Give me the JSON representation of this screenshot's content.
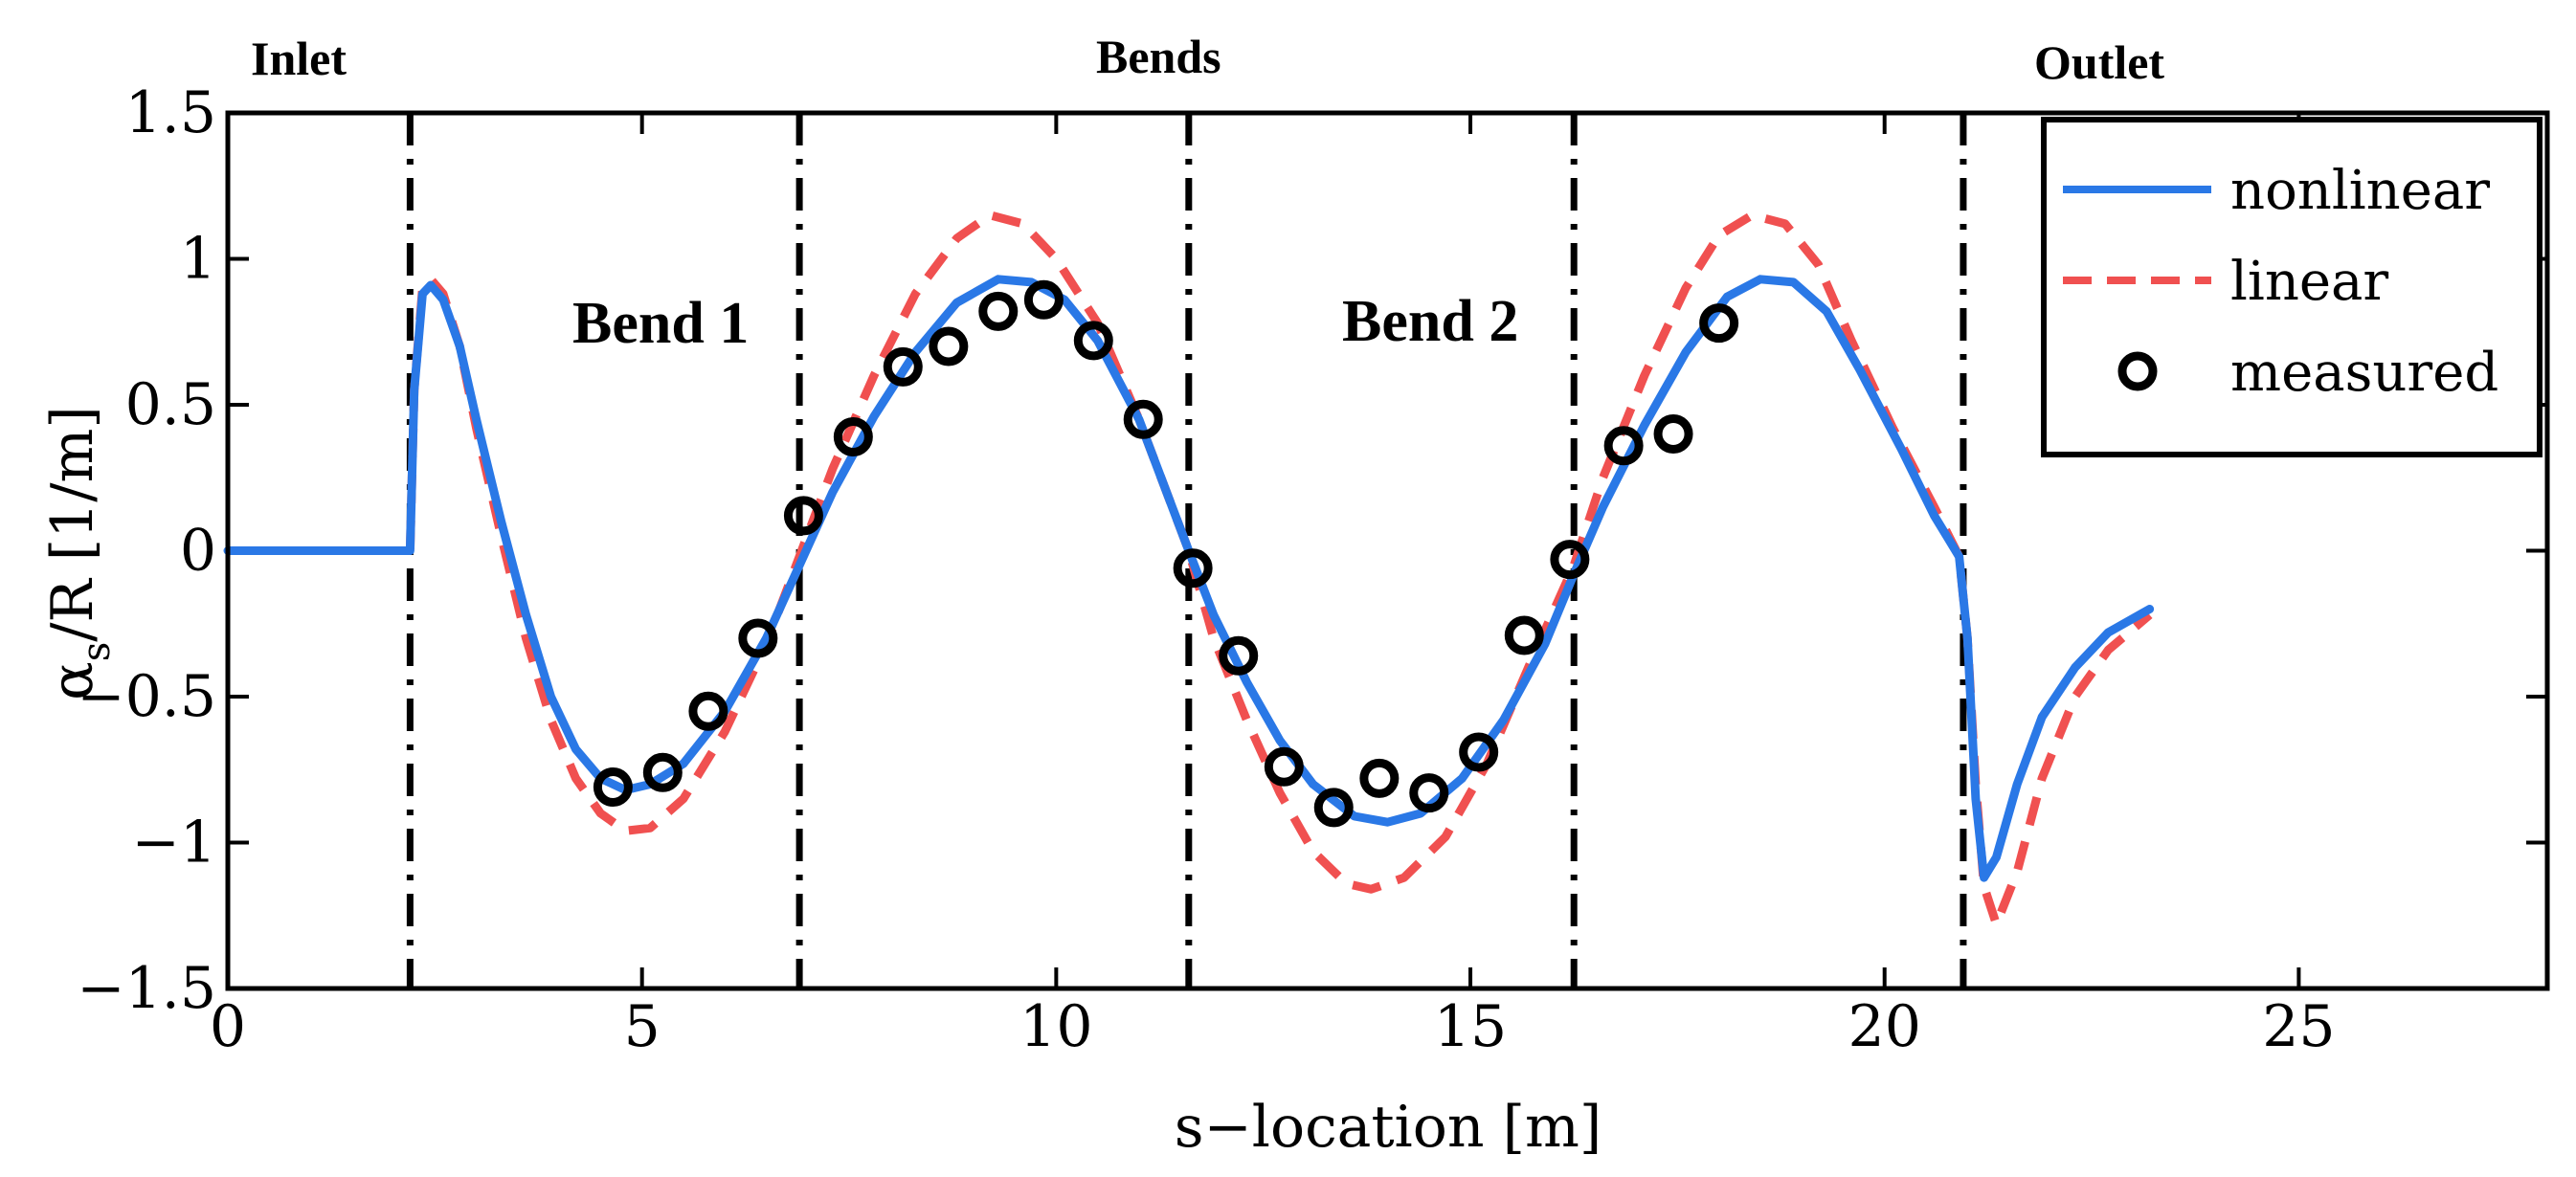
{
  "chart_data": {
    "type": "line",
    "xlabel": "s−location [m]",
    "ylabel_symbol": "α",
    "ylabel_sub": "s",
    "ylabel_rest": "/R [1/m]",
    "xlim": [
      0,
      28
    ],
    "ylim": [
      -1.5,
      1.5
    ],
    "xticks": [
      0,
      5,
      10,
      15,
      20,
      25
    ],
    "xtick_labels": [
      "0",
      "5",
      "10",
      "15",
      "20",
      "25"
    ],
    "yticks": [
      -1.5,
      -1,
      -0.5,
      0,
      0.5,
      1,
      1.5
    ],
    "ytick_labels": [
      "−1.5",
      "−1",
      "−0.5",
      "0",
      "0.5",
      "1",
      "1.5"
    ],
    "vlines": [
      2.2,
      6.9,
      11.6,
      16.25,
      20.95
    ],
    "region_labels": {
      "inlet": "Inlet",
      "bends": "Bends",
      "outlet": "Outlet"
    },
    "annotations": {
      "bend1": "Bend 1",
      "bend2": "Bend 2"
    },
    "series": [
      {
        "name": "nonlinear",
        "style": "solid",
        "color": "#2a78e6",
        "points": [
          [
            0,
            0
          ],
          [
            2.2,
            0
          ],
          [
            2.25,
            0.55
          ],
          [
            2.35,
            0.88
          ],
          [
            2.45,
            0.91
          ],
          [
            2.6,
            0.86
          ],
          [
            2.8,
            0.7
          ],
          [
            3.0,
            0.45
          ],
          [
            3.3,
            0.1
          ],
          [
            3.6,
            -0.22
          ],
          [
            3.9,
            -0.5
          ],
          [
            4.2,
            -0.68
          ],
          [
            4.5,
            -0.78
          ],
          [
            4.8,
            -0.82
          ],
          [
            5.1,
            -0.8
          ],
          [
            5.5,
            -0.73
          ],
          [
            6.0,
            -0.55
          ],
          [
            6.5,
            -0.3
          ],
          [
            6.9,
            -0.05
          ],
          [
            7.3,
            0.2
          ],
          [
            7.8,
            0.46
          ],
          [
            8.3,
            0.68
          ],
          [
            8.8,
            0.85
          ],
          [
            9.3,
            0.93
          ],
          [
            9.7,
            0.92
          ],
          [
            10.1,
            0.86
          ],
          [
            10.5,
            0.72
          ],
          [
            11.0,
            0.45
          ],
          [
            11.4,
            0.15
          ],
          [
            11.6,
            0.0
          ],
          [
            11.9,
            -0.22
          ],
          [
            12.3,
            -0.45
          ],
          [
            12.7,
            -0.65
          ],
          [
            13.1,
            -0.8
          ],
          [
            13.6,
            -0.91
          ],
          [
            14.0,
            -0.93
          ],
          [
            14.4,
            -0.9
          ],
          [
            14.9,
            -0.78
          ],
          [
            15.4,
            -0.58
          ],
          [
            15.9,
            -0.32
          ],
          [
            16.25,
            -0.08
          ],
          [
            16.6,
            0.15
          ],
          [
            17.1,
            0.43
          ],
          [
            17.6,
            0.68
          ],
          [
            18.1,
            0.87
          ],
          [
            18.5,
            0.93
          ],
          [
            18.9,
            0.92
          ],
          [
            19.3,
            0.82
          ],
          [
            19.7,
            0.62
          ],
          [
            20.2,
            0.35
          ],
          [
            20.6,
            0.12
          ],
          [
            20.9,
            -0.02
          ],
          [
            21.0,
            -0.3
          ],
          [
            21.1,
            -0.85
          ],
          [
            21.2,
            -1.12
          ],
          [
            21.35,
            -1.05
          ],
          [
            21.6,
            -0.8
          ],
          [
            21.9,
            -0.57
          ],
          [
            22.3,
            -0.4
          ],
          [
            22.7,
            -0.28
          ],
          [
            23.2,
            -0.2
          ]
        ]
      },
      {
        "name": "linear",
        "style": "dashed",
        "color": "#f05050",
        "points": [
          [
            0,
            0
          ],
          [
            2.2,
            0
          ],
          [
            2.25,
            0.55
          ],
          [
            2.35,
            0.9
          ],
          [
            2.45,
            0.93
          ],
          [
            2.6,
            0.88
          ],
          [
            2.8,
            0.7
          ],
          [
            3.0,
            0.42
          ],
          [
            3.3,
            0.05
          ],
          [
            3.6,
            -0.3
          ],
          [
            3.9,
            -0.58
          ],
          [
            4.2,
            -0.78
          ],
          [
            4.5,
            -0.9
          ],
          [
            4.8,
            -0.96
          ],
          [
            5.1,
            -0.95
          ],
          [
            5.5,
            -0.85
          ],
          [
            6.0,
            -0.62
          ],
          [
            6.5,
            -0.32
          ],
          [
            6.9,
            -0.02
          ],
          [
            7.3,
            0.28
          ],
          [
            7.8,
            0.6
          ],
          [
            8.3,
            0.88
          ],
          [
            8.8,
            1.07
          ],
          [
            9.2,
            1.15
          ],
          [
            9.6,
            1.12
          ],
          [
            10.0,
            1.0
          ],
          [
            10.5,
            0.78
          ],
          [
            11.0,
            0.45
          ],
          [
            11.4,
            0.15
          ],
          [
            11.6,
            0.0
          ],
          [
            11.9,
            -0.3
          ],
          [
            12.3,
            -0.58
          ],
          [
            12.7,
            -0.83
          ],
          [
            13.1,
            -1.03
          ],
          [
            13.5,
            -1.14
          ],
          [
            13.8,
            -1.16
          ],
          [
            14.2,
            -1.12
          ],
          [
            14.7,
            -0.98
          ],
          [
            15.2,
            -0.73
          ],
          [
            15.7,
            -0.4
          ],
          [
            16.25,
            -0.05
          ],
          [
            16.6,
            0.25
          ],
          [
            17.1,
            0.6
          ],
          [
            17.6,
            0.9
          ],
          [
            18.0,
            1.08
          ],
          [
            18.4,
            1.15
          ],
          [
            18.8,
            1.12
          ],
          [
            19.2,
            0.98
          ],
          [
            19.6,
            0.72
          ],
          [
            20.1,
            0.42
          ],
          [
            20.6,
            0.15
          ],
          [
            20.9,
            -0.02
          ],
          [
            21.0,
            -0.3
          ],
          [
            21.1,
            -0.8
          ],
          [
            21.2,
            -1.15
          ],
          [
            21.35,
            -1.28
          ],
          [
            21.6,
            -1.1
          ],
          [
            21.9,
            -0.78
          ],
          [
            22.3,
            -0.5
          ],
          [
            22.7,
            -0.34
          ],
          [
            23.2,
            -0.22
          ]
        ]
      },
      {
        "name": "measured",
        "style": "markers",
        "color": "#000000",
        "points": [
          [
            4.65,
            -0.81
          ],
          [
            5.25,
            -0.76
          ],
          [
            5.8,
            -0.55
          ],
          [
            6.4,
            -0.3
          ],
          [
            6.95,
            0.12
          ],
          [
            7.55,
            0.39
          ],
          [
            8.15,
            0.63
          ],
          [
            8.7,
            0.7
          ],
          [
            9.3,
            0.82
          ],
          [
            9.85,
            0.86
          ],
          [
            10.45,
            0.72
          ],
          [
            11.05,
            0.45
          ],
          [
            11.65,
            -0.06
          ],
          [
            12.2,
            -0.36
          ],
          [
            12.75,
            -0.74
          ],
          [
            13.35,
            -0.88
          ],
          [
            13.9,
            -0.78
          ],
          [
            14.5,
            -0.83
          ],
          [
            15.1,
            -0.69
          ],
          [
            15.65,
            -0.29
          ],
          [
            16.2,
            -0.03
          ],
          [
            16.85,
            0.36
          ],
          [
            17.45,
            0.4
          ],
          [
            18.0,
            0.78
          ]
        ]
      }
    ],
    "legend": {
      "position": "top-right",
      "entries": [
        "nonlinear",
        "linear",
        "measured"
      ]
    }
  }
}
